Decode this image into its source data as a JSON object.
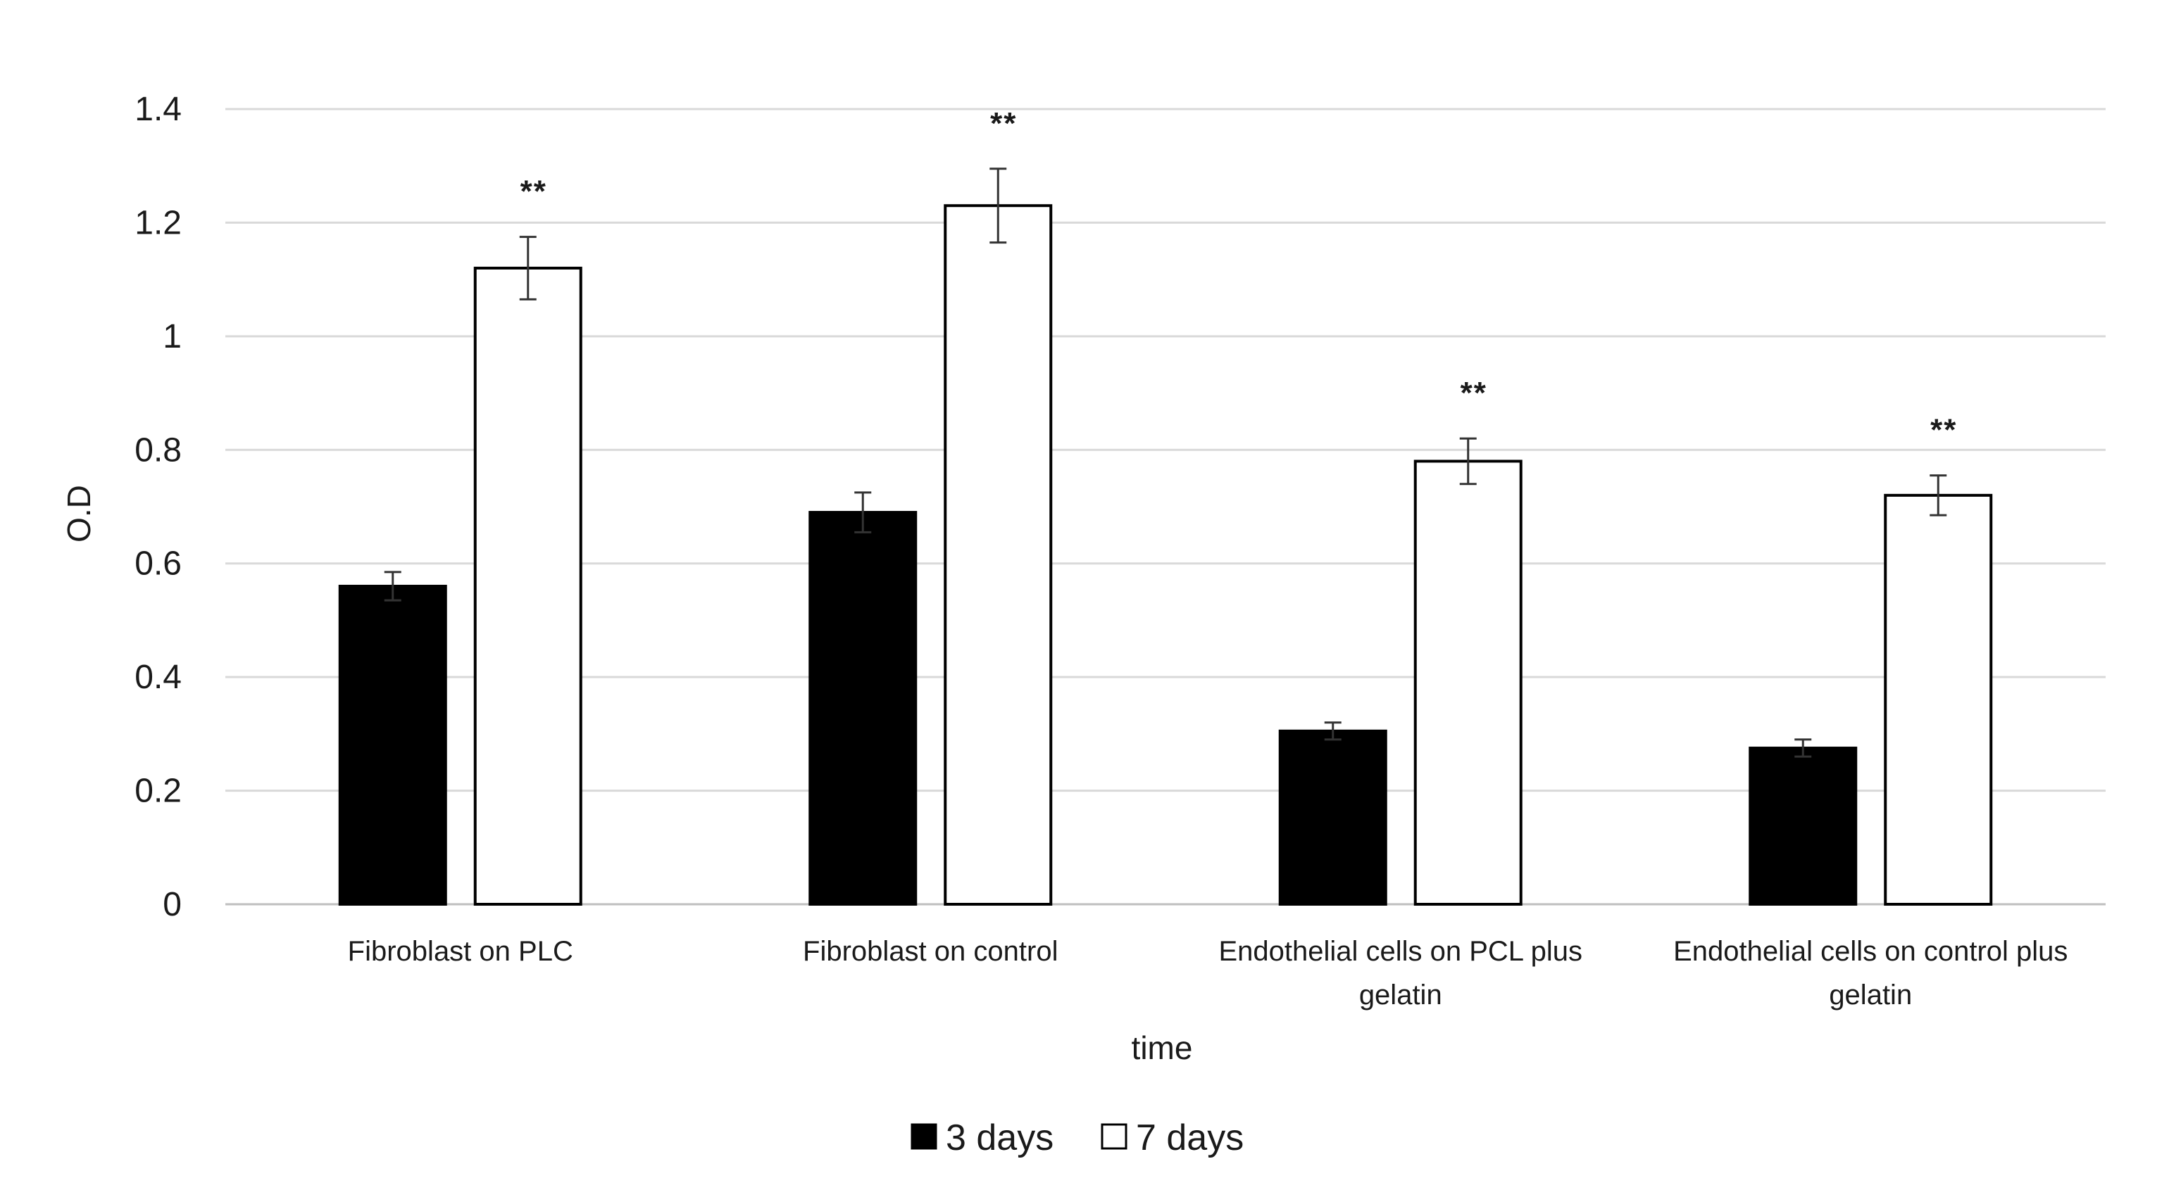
{
  "chart_data": {
    "type": "bar",
    "title": "",
    "xlabel": "time",
    "ylabel": "O.D",
    "ylim": [
      0,
      1.4
    ],
    "yticks": [
      "0",
      "0.2",
      "0.4",
      "0.6",
      "0.8",
      "1",
      "1.2",
      "1.4"
    ],
    "ytick_values": [
      0,
      0.2,
      0.4,
      0.6,
      0.8,
      1.0,
      1.2,
      1.4
    ],
    "grid": true,
    "legend_position": "bottom",
    "categories": [
      [
        "Fibroblast on PLC"
      ],
      [
        "Fibroblast on control"
      ],
      [
        "Endothelial cells on PCL plus",
        "gelatin"
      ],
      [
        "Endothelial cells on control plus",
        "gelatin"
      ]
    ],
    "series": [
      {
        "name": "3 days",
        "color": "#000000",
        "values": [
          0.56,
          0.69,
          0.305,
          0.275
        ],
        "errors": [
          0.025,
          0.035,
          0.015,
          0.015
        ]
      },
      {
        "name": "7 days",
        "color": "#ffffff",
        "values": [
          1.12,
          1.23,
          0.78,
          0.72
        ],
        "errors": [
          0.055,
          0.065,
          0.04,
          0.035
        ]
      }
    ],
    "annotations": [
      "**",
      "**",
      "**",
      "**"
    ]
  }
}
